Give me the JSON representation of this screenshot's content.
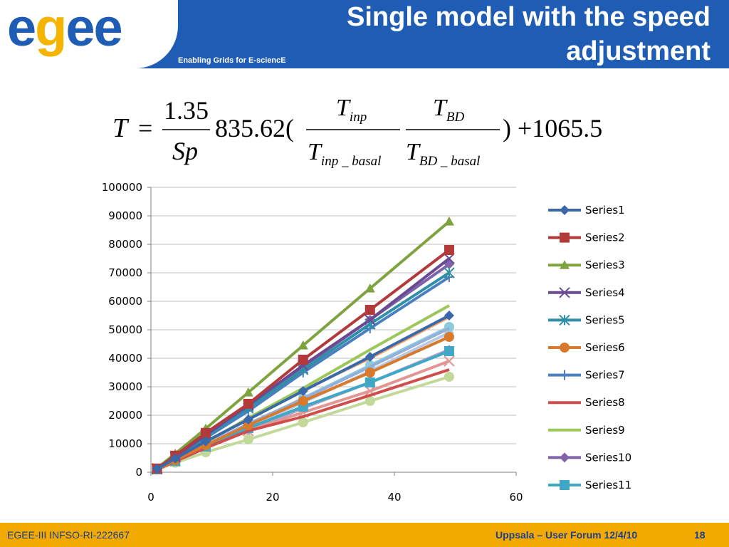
{
  "header": {
    "logo": "egee",
    "tagline": "Enabling Grids for E-sciencE",
    "title_line1": "Single model with the speed",
    "title_line2": "adjustment"
  },
  "formula": {
    "lhs": "T",
    "eq": "=",
    "frac1_num": "1.35",
    "frac1_den": "Sp",
    "coef": "835.62(",
    "frac2_num_main": "T",
    "frac2_num_sub": "inp",
    "frac2_den_main": "T",
    "frac2_den_sub": "inp _ basal",
    "frac3_num_main": "T",
    "frac3_num_sub": "BD",
    "frac3_den_main": "T",
    "frac3_den_sub": "BD _ basal",
    "tail": ") +1065.5"
  },
  "chart_data": {
    "type": "line",
    "xlim": [
      0,
      60
    ],
    "ylim": [
      0,
      100000
    ],
    "xticks": [
      "0",
      "20",
      "40",
      "60"
    ],
    "yticks": [
      "0",
      "10000",
      "20000",
      "30000",
      "40000",
      "50000",
      "60000",
      "70000",
      "80000",
      "90000",
      "100000"
    ],
    "grid": "horizontal",
    "legend_position": "right",
    "x": [
      1,
      4,
      9,
      16,
      25,
      36,
      49
    ],
    "series": [
      {
        "name": "Series1",
        "color": "#3a68a8",
        "marker": "diamond",
        "values": [
          1200,
          4800,
          10800,
          18500,
          28500,
          40500,
          55000
        ]
      },
      {
        "name": "Series2",
        "color": "#b23a3a",
        "marker": "square",
        "values": [
          1300,
          5800,
          13800,
          24000,
          39500,
          57000,
          78000
        ]
      },
      {
        "name": "Series3",
        "color": "#7ea33f",
        "marker": "triangle",
        "values": [
          1400,
          6500,
          15300,
          28000,
          44500,
          64500,
          88000
        ]
      },
      {
        "name": "Series4",
        "color": "#6b4a94",
        "marker": "x",
        "values": [
          1300,
          5500,
          13000,
          23500,
          37500,
          53500,
          75000
        ]
      },
      {
        "name": "Series5",
        "color": "#2e8fa7",
        "marker": "asterisk",
        "values": [
          1200,
          5200,
          12500,
          22500,
          36000,
          52000,
          70000
        ]
      },
      {
        "name": "Series6",
        "color": "#d9792c",
        "marker": "circle",
        "values": [
          1100,
          4200,
          9500,
          16500,
          25000,
          35000,
          47500
        ]
      },
      {
        "name": "Series7",
        "color": "#4a7fc1",
        "marker": "plus",
        "values": [
          1200,
          5000,
          12000,
          21500,
          35000,
          50500,
          68500
        ]
      },
      {
        "name": "Series8",
        "color": "#cf4d4a",
        "marker": "none",
        "values": [
          1000,
          3800,
          8500,
          14500,
          19500,
          27000,
          36000
        ]
      },
      {
        "name": "Series9",
        "color": "#9cc75a",
        "marker": "none",
        "values": [
          1100,
          4500,
          10500,
          19000,
          29500,
          43000,
          58500
        ]
      },
      {
        "name": "Series10",
        "color": "#7f64a9",
        "marker": "diamond",
        "values": [
          1200,
          5300,
          13000,
          23000,
          37000,
          53500,
          73000
        ]
      },
      {
        "name": "Series11",
        "color": "#40a7c6",
        "marker": "square",
        "values": [
          1000,
          3900,
          9000,
          15500,
          23000,
          31500,
          42500
        ]
      },
      {
        "name": "",
        "color": "#f2a36b",
        "marker": "none",
        "values": [
          1100,
          4600,
          10500,
          18800,
          28800,
          40000,
          54500
        ]
      },
      {
        "name": "",
        "color": "#93b0db",
        "marker": "none",
        "values": [
          1100,
          4300,
          9800,
          17000,
          25800,
          37000,
          50500
        ]
      },
      {
        "name": "",
        "color": "#e39592",
        "marker": "x",
        "values": [
          1000,
          3800,
          8800,
          14500,
          21000,
          28500,
          39000
        ]
      },
      {
        "name": "",
        "color": "#c2d99a",
        "marker": "circle",
        "values": [
          900,
          3300,
          7000,
          11500,
          17500,
          25000,
          33500
        ]
      },
      {
        "name": "",
        "color": "#b2a3c8",
        "marker": "diamond",
        "values": [
          1000,
          4000,
          8800,
          14500,
          22500,
          31500,
          43000
        ]
      },
      {
        "name": "",
        "color": "#8ec9dc",
        "marker": "circle",
        "values": [
          1000,
          4000,
          9500,
          16500,
          26000,
          37500,
          51000
        ]
      },
      {
        "name": "",
        "color": "#b7c9e3",
        "marker": "diamond",
        "values": [
          1000,
          4000,
          9200,
          16000,
          24500,
          35500,
          49000
        ]
      }
    ]
  },
  "footer": {
    "left": "EGEE-III INFSO-RI-222667",
    "right": "Uppsala – User Forum 12/4/10",
    "page": "18"
  }
}
